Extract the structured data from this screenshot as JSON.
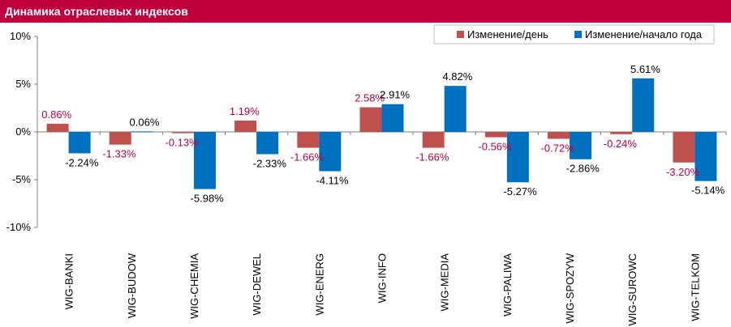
{
  "title": "Динамика отраслевых индексов",
  "colors": {
    "title_bg": "#c0003c",
    "series_day": "#c0504d",
    "series_year": "#0070c0",
    "day_label": "#c0003c",
    "year_label": "#000000"
  },
  "chart_data": {
    "type": "bar",
    "title": "",
    "xlabel": "",
    "ylabel": "",
    "ylim": [
      -10,
      10
    ],
    "yticks": [
      {
        "value": 10,
        "label": "10%"
      },
      {
        "value": 5,
        "label": "5%"
      },
      {
        "value": 0,
        "label": "0%"
      },
      {
        "value": -5,
        "label": "-5%"
      },
      {
        "value": -10,
        "label": "-10%"
      }
    ],
    "legend_position": "top-right",
    "grid": false,
    "categories": [
      "WIG-BANKI",
      "WIG-BUDOW",
      "WIG-CHEMIA",
      "WIG-DEWEL",
      "WIG-ENERG",
      "WIG-INFO",
      "WIG-MEDIA",
      "WIG-PALIWA",
      "WIG-SPOZYW",
      "WIG-SUROWC",
      "WIG-TELKOM"
    ],
    "series": [
      {
        "name": "Изменение/день",
        "values": [
          0.86,
          -1.33,
          -0.13,
          1.19,
          -1.66,
          2.58,
          -1.66,
          -0.56,
          -0.72,
          -0.24,
          -3.2
        ],
        "labels": [
          "0.86%",
          "-1.33%",
          "-0.13%",
          "1.19%",
          "-1.66%",
          "2.58%",
          "-1.66%",
          "-0.56%",
          "-0.72%",
          "-0.24%",
          "-3.20%"
        ]
      },
      {
        "name": "Изменение/начало года",
        "values": [
          -2.24,
          0.06,
          -5.98,
          -2.33,
          -4.11,
          2.91,
          4.82,
          -5.27,
          -2.86,
          5.61,
          -5.14
        ],
        "labels": [
          "-2.24%",
          "0.06%",
          "-5.98%",
          "-2.33%",
          "-4.11%",
          "2.91%",
          "4.82%",
          "-5.27%",
          "-2.86%",
          "5.61%",
          "-5.14%"
        ]
      }
    ]
  }
}
